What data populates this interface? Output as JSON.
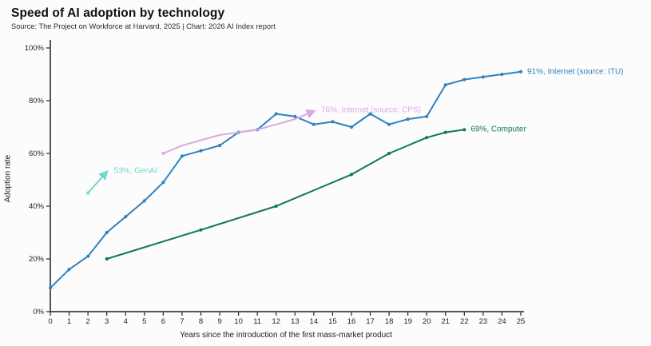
{
  "header": {
    "title": "Speed of AI adoption by technology",
    "subtitle": "Source: The Project on Workforce at Harvard, 2025 | Chart: 2026 AI Index report"
  },
  "chart_data": {
    "type": "line",
    "title": "Speed of AI adoption by technology",
    "xlabel": "Years since the introduction of the first mass-market product",
    "ylabel": "Adoption rate",
    "xlim": [
      0,
      25
    ],
    "ylim": [
      0,
      100
    ],
    "grid": false,
    "x_ticks": [
      0,
      1,
      2,
      3,
      4,
      5,
      6,
      7,
      8,
      9,
      10,
      11,
      12,
      13,
      14,
      15,
      16,
      17,
      18,
      19,
      20,
      21,
      22,
      23,
      24,
      25
    ],
    "y_tick_values": [
      0,
      20,
      40,
      60,
      80,
      100
    ],
    "y_tick_labels": [
      "0%",
      "20%",
      "40%",
      "60%",
      "80%",
      "100%"
    ],
    "axis_color": "#1f1f1f",
    "series": [
      {
        "name": "Internet (source: ITU)",
        "label": "91%, Internet (source: ITU)",
        "color": "#2f83c0",
        "arrow_end": false,
        "markers": "all",
        "x": [
          0,
          1,
          2,
          3,
          4,
          5,
          6,
          7,
          8,
          9,
          10,
          11,
          12,
          13,
          14,
          15,
          16,
          17,
          18,
          19,
          20,
          21,
          22,
          23,
          24,
          25
        ],
        "y": [
          9,
          16,
          21,
          30,
          36,
          42,
          49,
          59,
          61,
          63,
          68,
          69,
          75,
          74,
          71,
          72,
          70,
          75,
          71,
          73,
          74,
          86,
          88,
          89,
          90,
          91
        ]
      },
      {
        "name": "Internet (source: CPS)",
        "label": "76%, Internet (source: CPS)",
        "color": "#d9abe2",
        "arrow_end": true,
        "markers": "first",
        "x": [
          6,
          7,
          8,
          9,
          10,
          11,
          12,
          13,
          14
        ],
        "y": [
          60,
          63,
          65,
          67,
          68,
          69,
          71,
          73,
          76
        ]
      },
      {
        "name": "GenAI",
        "label": "53%, GenAI",
        "color": "#70d8ce",
        "arrow_end": true,
        "markers": "first",
        "x": [
          2,
          3
        ],
        "y": [
          45,
          53
        ]
      },
      {
        "name": "Computer",
        "label": "69%, Computer",
        "color": "#10794f",
        "arrow_end": false,
        "markers": "all",
        "x": [
          3,
          8,
          12,
          16,
          18,
          20,
          21,
          22
        ],
        "y": [
          20,
          31,
          40,
          52,
          60,
          66,
          68,
          69
        ]
      }
    ]
  }
}
